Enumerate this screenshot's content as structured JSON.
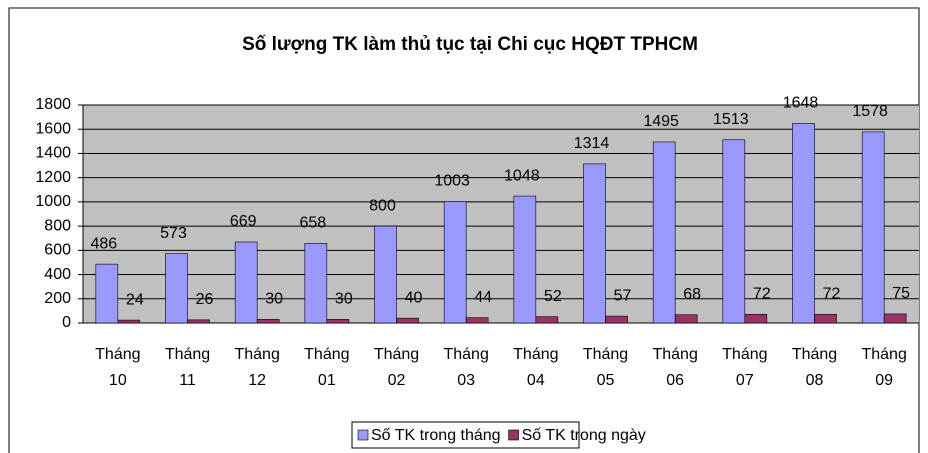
{
  "chart_data": {
    "type": "bar",
    "title": "Số lượng TK làm thủ tục tại Chi cục HQĐT TPHCM",
    "categories": [
      "Tháng 10",
      "Tháng 11",
      "Tháng 12",
      "Tháng 01",
      "Tháng 02",
      "Tháng 03",
      "Tháng 04",
      "Tháng 05",
      "Tháng 06",
      "Tháng 07",
      "Tháng 08",
      "Tháng 09"
    ],
    "series": [
      {
        "name": "Số TK trong tháng",
        "color": "#9999ff",
        "values": [
          486,
          573,
          669,
          658,
          800,
          1003,
          1048,
          1314,
          1495,
          1513,
          1648,
          1578
        ]
      },
      {
        "name": "Số TK trong ngày",
        "color": "#993366",
        "values": [
          24,
          26,
          30,
          30,
          40,
          44,
          52,
          57,
          68,
          72,
          72,
          75
        ]
      }
    ],
    "ylim": [
      0,
      1800
    ],
    "yticks": [
      0,
      200,
      400,
      600,
      800,
      1000,
      1200,
      1400,
      1600,
      1800
    ],
    "grid": true,
    "legend": "bottom"
  }
}
